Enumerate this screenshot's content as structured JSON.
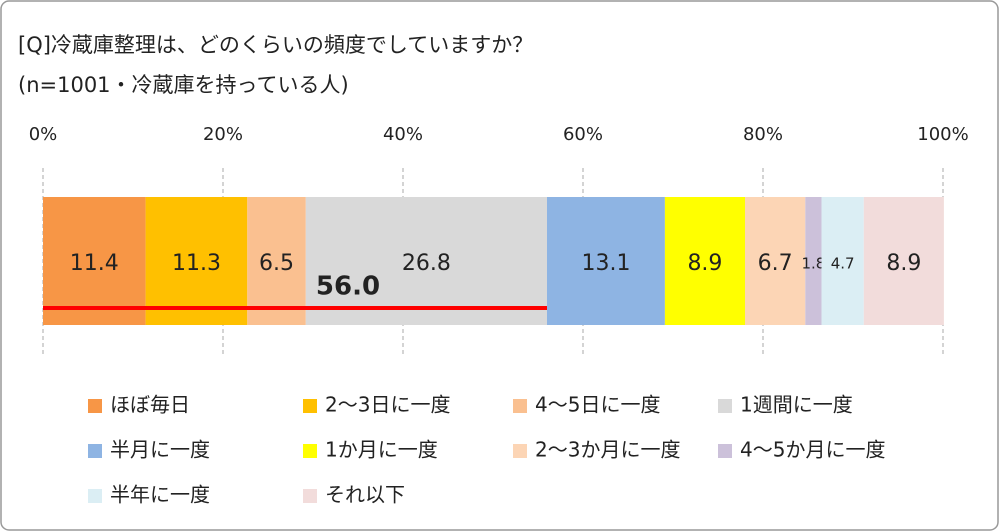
{
  "chart_data": {
    "type": "stacked-bar",
    "title": "[Q]冷蔵庫整理は、どのくらいの頻度でしていますか？",
    "subtitle": "(n=1001・冷蔵庫を持っている人)",
    "xlim": [
      0,
      100
    ],
    "xticks": [
      {
        "value": 0,
        "label": "0%"
      },
      {
        "value": 20,
        "label": "20%"
      },
      {
        "value": 40,
        "label": "40%"
      },
      {
        "value": 60,
        "label": "60%"
      },
      {
        "value": 80,
        "label": "80%"
      },
      {
        "value": 100,
        "label": "100%"
      }
    ],
    "grid": true,
    "legend": "bottom",
    "series": [
      {
        "name": "ほぼ毎日",
        "color": "#f79646",
        "values": [
          11.4
        ]
      },
      {
        "name": "2～3日に一度",
        "color": "#ffc000",
        "values": [
          11.3
        ]
      },
      {
        "name": "4～5日に一度",
        "color": "#fac090",
        "values": [
          6.5
        ]
      },
      {
        "name": "1週間に一度",
        "color": "#d9d9d9",
        "values": [
          26.8
        ]
      },
      {
        "name": "半月に一度",
        "color": "#8eb4e3",
        "values": [
          13.1
        ]
      },
      {
        "name": "1か月に一度",
        "color": "#ffff00",
        "values": [
          8.9
        ]
      },
      {
        "name": "2～3か月に一度",
        "color": "#fcd5b5",
        "values": [
          6.7
        ]
      },
      {
        "name": "4～5か月に一度",
        "color": "#ccc1da",
        "values": [
          1.8
        ]
      },
      {
        "name": "半年に一度",
        "color": "#dbeef4",
        "values": [
          4.7
        ]
      },
      {
        "name": "それ以下",
        "color": "#f2dcdb",
        "values": [
          8.9
        ]
      }
    ],
    "annotations": [
      {
        "label": "56.0",
        "value": 56,
        "color": "#ff0000"
      }
    ]
  }
}
